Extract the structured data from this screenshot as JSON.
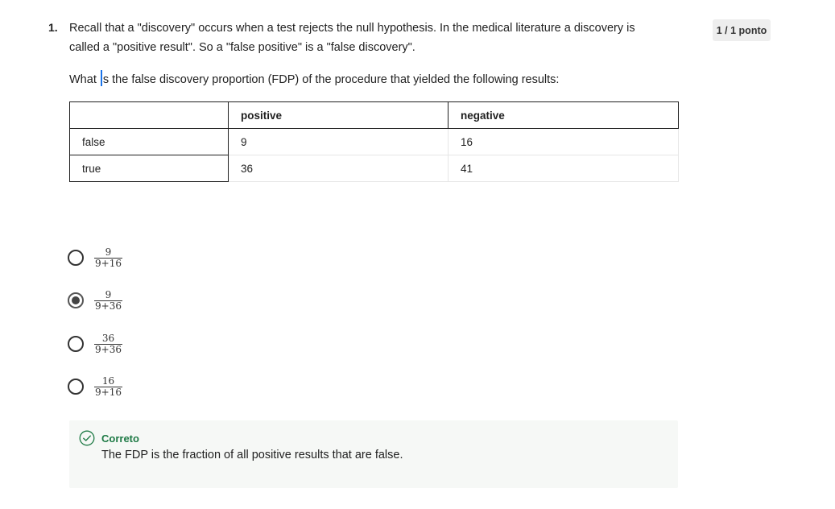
{
  "question": {
    "number": "1.",
    "text": "Recall that a \"discovery\" occurs when a test rejects the null hypothesis. In the medical literature a discovery is called a \"positive result\". So a \"false positive\" is a \"false discovery\".",
    "prompt_before_cursor": "What ",
    "prompt_after_cursor": "s the false discovery proportion (FDP) of the procedure that yielded the following results:"
  },
  "score": "1 / 1 ponto",
  "table": {
    "headers": [
      "",
      "positive",
      "negative"
    ],
    "rows": [
      [
        "false",
        "9",
        "16"
      ],
      [
        "true",
        "36",
        "41"
      ]
    ]
  },
  "options": [
    {
      "num": "9",
      "den": "9+16",
      "selected": false
    },
    {
      "num": "9",
      "den": "9+36",
      "selected": true
    },
    {
      "num": "36",
      "den": "9+36",
      "selected": false
    },
    {
      "num": "16",
      "den": "9+16",
      "selected": false
    }
  ],
  "feedback": {
    "status": "Correto",
    "message": "The FDP is the fraction of all positive results that are false.",
    "icon": "check-circle-icon",
    "color": "#1e7a45"
  }
}
